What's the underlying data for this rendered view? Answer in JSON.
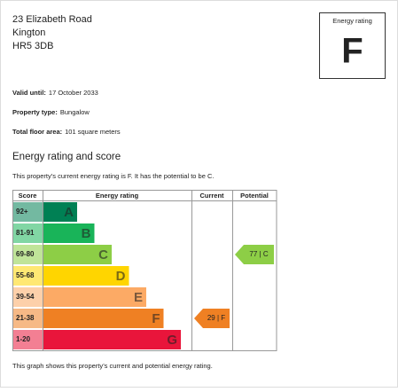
{
  "address": {
    "line1": "23  Elizabeth Road",
    "line2": "Kington",
    "line3": "HR5 3DB"
  },
  "rating_box": {
    "label": "Energy rating",
    "rating": "F"
  },
  "details": [
    {
      "label": "Valid until:",
      "value": "17 October 2033"
    },
    {
      "label": "Property type:",
      "value": "Bungalow"
    },
    {
      "label": "Total floor area:",
      "value": "101 square meters"
    }
  ],
  "section": {
    "title": "Energy rating and score",
    "summary": "This property’s current energy rating is F. It has the potential to be C."
  },
  "table": {
    "headers": [
      "Score",
      "Energy rating",
      "Current",
      "Potential"
    ],
    "bands": [
      {
        "score": "92+",
        "letter": "A",
        "color": "#008054"
      },
      {
        "score": "81-91",
        "letter": "B",
        "color": "#19b459"
      },
      {
        "score": "69-80",
        "letter": "C",
        "color": "#8dce46"
      },
      {
        "score": "55-68",
        "letter": "D",
        "color": "#ffd500"
      },
      {
        "score": "39-54",
        "letter": "E",
        "color": "#fcaa65"
      },
      {
        "score": "21-38",
        "letter": "F",
        "color": "#ef8023"
      },
      {
        "score": "1-20",
        "letter": "G",
        "color": "#e9153b"
      }
    ],
    "current": {
      "label": "29 | F",
      "rating": "F"
    },
    "potential": {
      "label": "77 | C",
      "rating": "C"
    }
  },
  "footnote": "This graph shows this property’s current and potential energy rating."
}
